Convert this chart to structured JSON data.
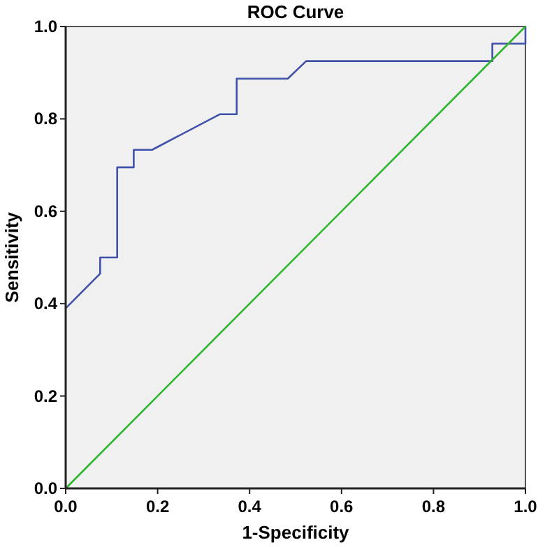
{
  "chart_data": {
    "type": "line",
    "title": "ROC Curve",
    "xlabel": "1-Specificity",
    "ylabel": "Sensitivity",
    "xlim": [
      0,
      1
    ],
    "ylim": [
      0,
      1
    ],
    "xticks": [
      {
        "value": 0,
        "label": "0.0"
      },
      {
        "value": 0.2,
        "label": "0.2"
      },
      {
        "value": 0.4,
        "label": "0.4"
      },
      {
        "value": 0.6,
        "label": "0.6"
      },
      {
        "value": 0.8,
        "label": "0.8"
      },
      {
        "value": 1,
        "label": "1.0"
      }
    ],
    "yticks": [
      {
        "value": 0,
        "label": "0.0"
      },
      {
        "value": 0.2,
        "label": "0.2"
      },
      {
        "value": 0.4,
        "label": "0.4"
      },
      {
        "value": 0.6,
        "label": "0.6"
      },
      {
        "value": 0.8,
        "label": "0.8"
      },
      {
        "value": 1,
        "label": "1.0"
      }
    ],
    "grid": false,
    "marker": "none",
    "line_style": "solid",
    "series": [
      {
        "color": "#3f51a8",
        "x": [
          0,
          0.075,
          0.075,
          0.112,
          0.112,
          0.148,
          0.148,
          0.188,
          0.335,
          0.372,
          0.372,
          0.483,
          0.523,
          0.928,
          0.928,
          1,
          1
        ],
        "values": [
          0.39,
          0.465,
          0.5,
          0.5,
          0.695,
          0.695,
          0.733,
          0.733,
          0.81,
          0.81,
          0.887,
          0.887,
          0.925,
          0.925,
          0.963,
          0.963,
          1
        ]
      },
      {
        "color": "#2db52d",
        "x": [
          0,
          1
        ],
        "values": [
          0,
          1
        ]
      }
    ]
  }
}
